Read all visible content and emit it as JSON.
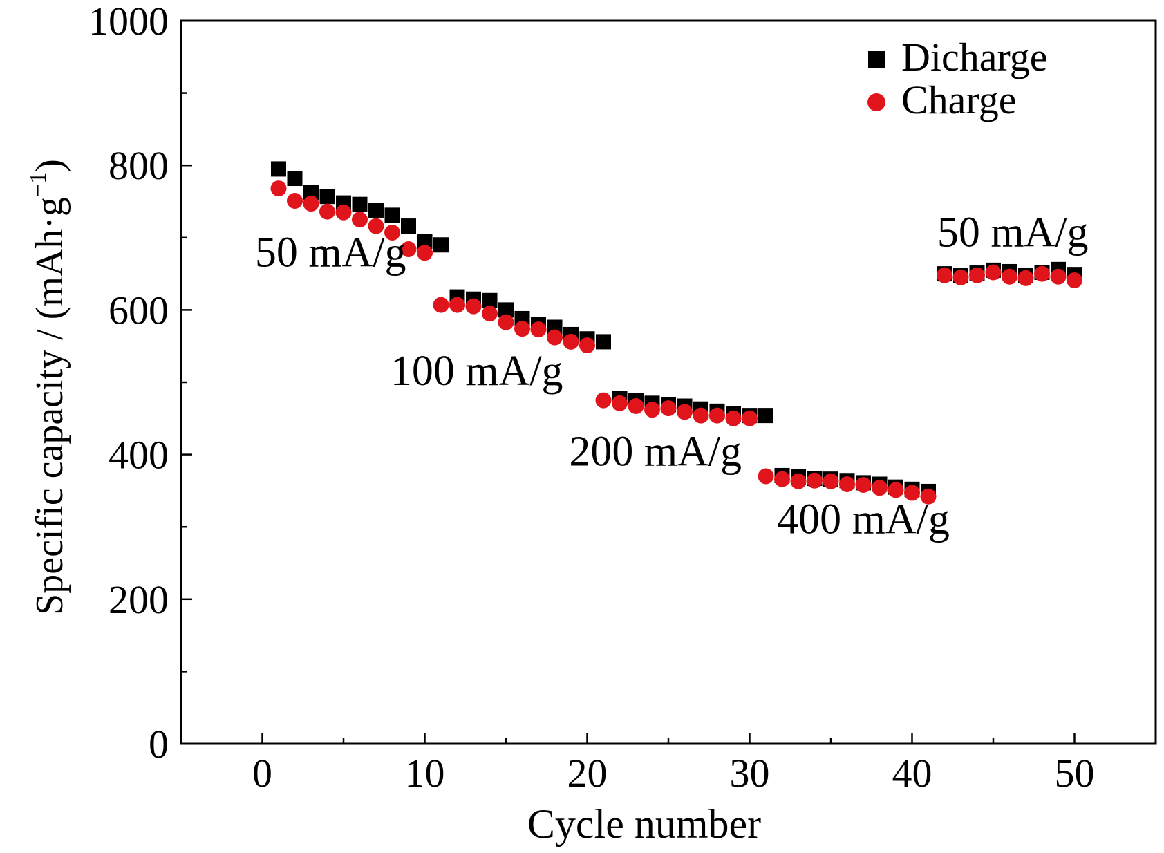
{
  "chart_data": {
    "type": "scatter",
    "xlabel": "Cycle number",
    "ylabel": "Specific capacity / (mAh·g",
    "ylabel_sup": "−1",
    "ylabel_close": ")",
    "xlim": [
      -5,
      55
    ],
    "ylim": [
      0,
      1000
    ],
    "xticks": [
      0,
      10,
      20,
      30,
      40,
      50
    ],
    "xtick_labels": [
      "0",
      "10",
      "20",
      "30",
      "40",
      "50"
    ],
    "yticks": [
      0,
      200,
      400,
      600,
      800,
      1000
    ],
    "ytick_labels": [
      "0",
      "200",
      "400",
      "600",
      "800",
      "1000"
    ],
    "legend_position": "top-right",
    "series": [
      {
        "name": "Dicharge",
        "marker": "square",
        "color": "#000000",
        "x": [
          1,
          2,
          3,
          4,
          5,
          6,
          7,
          8,
          9,
          10,
          11,
          12,
          13,
          14,
          15,
          16,
          17,
          18,
          19,
          20,
          21,
          22,
          23,
          24,
          25,
          26,
          27,
          28,
          29,
          30,
          31,
          32,
          33,
          34,
          35,
          36,
          37,
          38,
          39,
          40,
          41,
          42,
          43,
          44,
          45,
          46,
          47,
          48,
          49,
          50
        ],
        "y": [
          795,
          782,
          762,
          757,
          748,
          746,
          738,
          731,
          716,
          695,
          690,
          618,
          615,
          613,
          600,
          588,
          580,
          576,
          566,
          560,
          556,
          478,
          475,
          471,
          469,
          467,
          463,
          460,
          456,
          454,
          454,
          371,
          369,
          367,
          366,
          364,
          361,
          359,
          355,
          352,
          349,
          650,
          648,
          651,
          655,
          653,
          648,
          652,
          656,
          649
        ]
      },
      {
        "name": "Charge",
        "marker": "circle",
        "color": "#e0151c",
        "x": [
          1,
          2,
          3,
          4,
          5,
          6,
          7,
          8,
          9,
          10,
          11,
          12,
          13,
          14,
          15,
          16,
          17,
          18,
          19,
          20,
          21,
          22,
          23,
          24,
          25,
          26,
          27,
          28,
          29,
          30,
          31,
          32,
          33,
          34,
          35,
          36,
          37,
          38,
          39,
          40,
          41,
          42,
          43,
          44,
          45,
          46,
          47,
          48,
          49,
          50
        ],
        "y": [
          768,
          751,
          747,
          736,
          735,
          725,
          716,
          707,
          684,
          679,
          607,
          607,
          605,
          595,
          583,
          574,
          573,
          562,
          556,
          551,
          475,
          471,
          467,
          462,
          464,
          459,
          454,
          454,
          450,
          450,
          370,
          366,
          363,
          364,
          363,
          359,
          358,
          354,
          351,
          347,
          342,
          648,
          645,
          648,
          652,
          646,
          644,
          650,
          646,
          641
        ]
      }
    ],
    "annotations": [
      {
        "text": "50 mA/g",
        "x": 4.2,
        "y": 660
      },
      {
        "text": "100 mA/g",
        "x": 13.2,
        "y": 496
      },
      {
        "text": "200 mA/g",
        "x": 24.2,
        "y": 385
      },
      {
        "text": "400 mA/g",
        "x": 37,
        "y": 291
      },
      {
        "text": "50 mA/g",
        "x": 46.2,
        "y": 688
      }
    ]
  }
}
